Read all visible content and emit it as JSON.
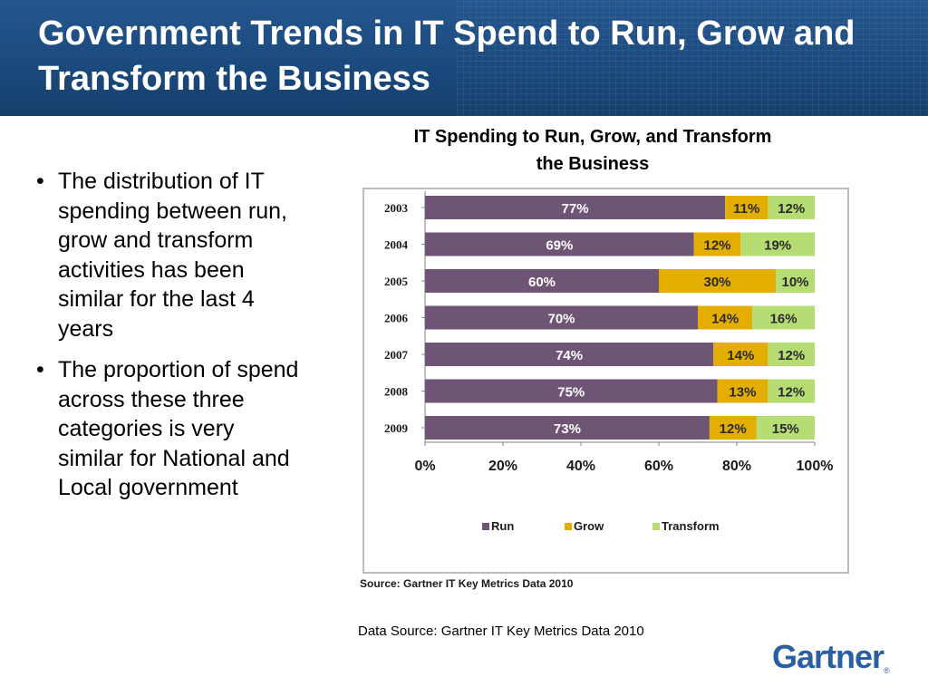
{
  "header": {
    "title": "Government Trends in IT Spend to Run, Grow and Transform the Business"
  },
  "bullets": [
    "The distribution of IT spending between run, grow and transform activities has been similar for the last 4 years",
    "The proportion of spend across these three categories is very similar for National and Local government"
  ],
  "chart_heading": "IT Spending to Run, Grow, and Transform the Business",
  "chart_source": "Source: Gartner IT Key Metrics Data 2010",
  "data_source": "Data Source: Gartner IT Key Metrics Data 2010",
  "logo": {
    "text": "Gartner",
    "mark": "®"
  },
  "colors": {
    "run": "#6e5576",
    "grow": "#e4ae00",
    "transform": "#b6dc74",
    "header": "#1b4a7e",
    "logo": "#2a5fa3"
  },
  "chart_data": {
    "type": "bar",
    "orientation": "horizontal",
    "stacked": true,
    "categories": [
      "2003",
      "2004",
      "2005",
      "2006",
      "2007",
      "2008",
      "2009"
    ],
    "series": [
      {
        "name": "Run",
        "values": [
          77,
          69,
          60,
          70,
          74,
          75,
          73
        ]
      },
      {
        "name": "Grow",
        "values": [
          11,
          12,
          30,
          14,
          14,
          13,
          12
        ]
      },
      {
        "name": "Transform",
        "values": [
          12,
          19,
          10,
          16,
          12,
          12,
          15
        ]
      }
    ],
    "value_labels": [
      [
        "77%",
        "11%",
        "12%"
      ],
      [
        "69%",
        "12%",
        "19%"
      ],
      [
        "60%",
        "30%",
        "10%"
      ],
      [
        "70%",
        "14%",
        "16%"
      ],
      [
        "74%",
        "14%",
        "12%"
      ],
      [
        "75%",
        "13%",
        "12%"
      ],
      [
        "73%",
        "12%",
        "15%"
      ]
    ],
    "xlim": [
      0,
      100
    ],
    "xticks": [
      "0%",
      "20%",
      "40%",
      "60%",
      "80%",
      "100%"
    ],
    "legend_position": "bottom",
    "grid": false
  }
}
